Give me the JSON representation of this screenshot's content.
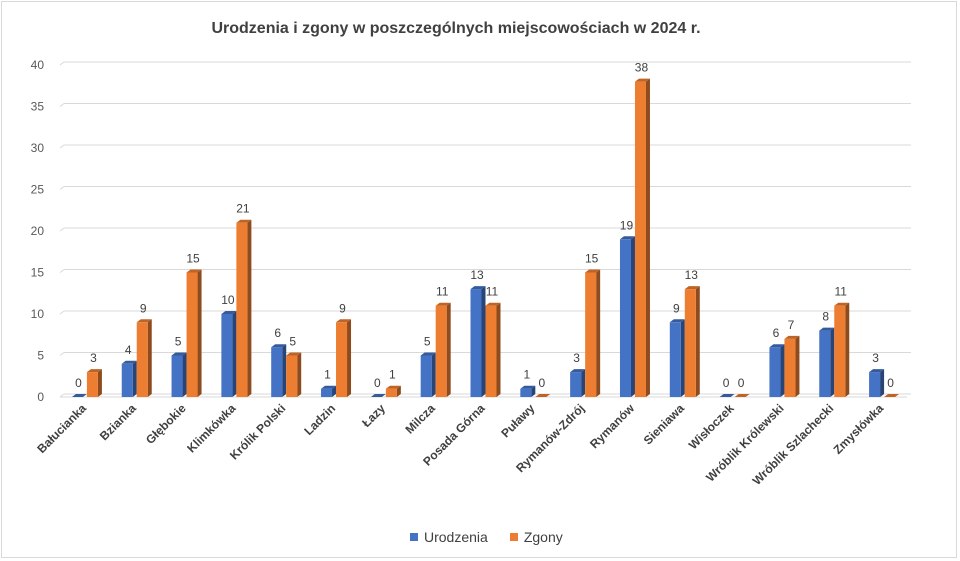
{
  "chart_data": {
    "type": "bar",
    "title": "Urodzenia i zgony w poszczególnych miejscowościach w 2024 r.",
    "xlabel": "",
    "ylabel": "",
    "ylim": [
      0,
      40
    ],
    "yticks": [
      0,
      5,
      10,
      15,
      20,
      25,
      30,
      35,
      40
    ],
    "grid": true,
    "legend_position": "bottom",
    "categories": [
      "Bałucianka",
      "Bzianka",
      "Głębokie",
      "Klimkówka",
      "Królik Polski",
      "Ladzin",
      "Łazy",
      "Milcza",
      "Posada Górna",
      "Puławy",
      "Rymanów-Zdrój",
      "Rymanów",
      "Sieniawa",
      "Wisłoczek",
      "Wróblik Królewski",
      "Wróblik Szlachecki",
      "Zmysłówka"
    ],
    "series": [
      {
        "name": "Urodzenia",
        "color": "#4472c4",
        "values": [
          0,
          4,
          5,
          10,
          6,
          1,
          0,
          5,
          13,
          1,
          3,
          19,
          9,
          0,
          6,
          8,
          3
        ]
      },
      {
        "name": "Zgony",
        "color": "#ed7d31",
        "values": [
          3,
          9,
          15,
          21,
          5,
          9,
          1,
          11,
          11,
          0,
          15,
          38,
          13,
          0,
          7,
          11,
          0
        ]
      }
    ]
  }
}
